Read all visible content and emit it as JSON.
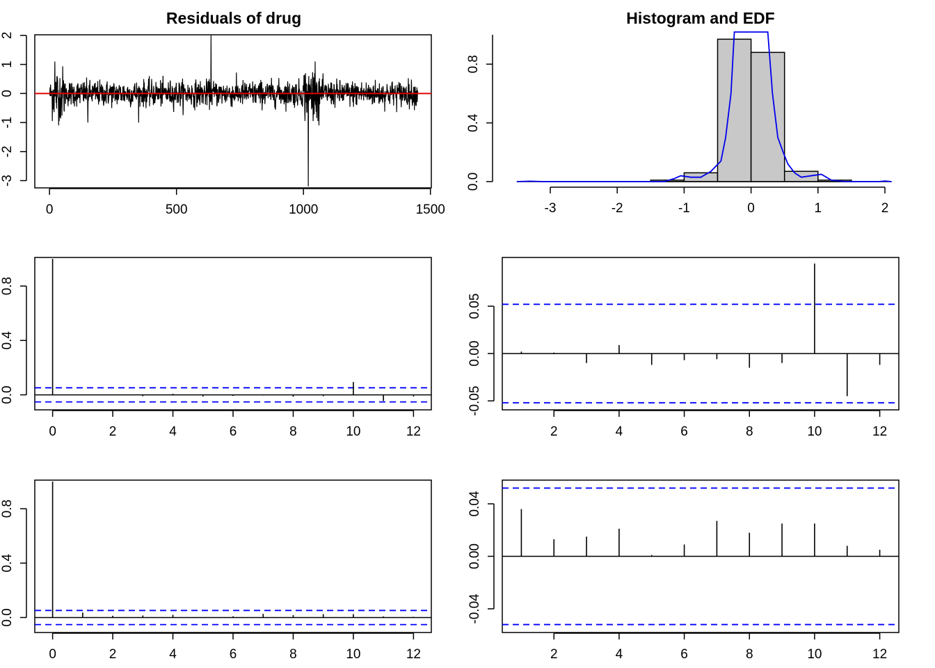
{
  "colors": {
    "axis": "#000000",
    "zero_line": "#e00000",
    "ci_line": "#0000ff",
    "density": "#0000ee",
    "hist_fill": "#c8c8c8"
  },
  "chart_data": [
    {
      "id": "residuals",
      "type": "line",
      "title": "Residuals of drug",
      "xlim": [
        0,
        1500
      ],
      "ylim": [
        -3.2,
        2
      ],
      "xticks": [
        0,
        500,
        1000,
        1500
      ],
      "yticks": [
        -3,
        -2,
        -1,
        0,
        1,
        2
      ],
      "n": 1450,
      "noise_sd": 0.22,
      "high_volatility_ranges": [
        [
          10,
          60
        ],
        [
          1000,
          1060
        ]
      ],
      "notable_points": [
        {
          "x": 635,
          "y": 2.0
        },
        {
          "x": 1018,
          "y": -3.2
        },
        {
          "x": 20,
          "y": 1.1
        },
        {
          "x": 1045,
          "y": 1.1
        },
        {
          "x": 35,
          "y": -1.1
        },
        {
          "x": 1060,
          "y": -1.1
        },
        {
          "x": 150,
          "y": -1.0
        },
        {
          "x": 350,
          "y": -1.0
        }
      ],
      "reference_line": 0
    },
    {
      "id": "histogram",
      "type": "bar",
      "title": "Histogram and EDF",
      "xlim": [
        -3.5,
        2.1
      ],
      "ylim": [
        0,
        1
      ],
      "xticks": [
        -3,
        -2,
        -1,
        0,
        1,
        2
      ],
      "yticks": [
        0.0,
        0.4,
        0.8
      ],
      "bins": [
        {
          "from": -1.5,
          "to": -1.0,
          "density": 0.01
        },
        {
          "from": -1.0,
          "to": -0.5,
          "density": 0.06
        },
        {
          "from": -0.5,
          "to": 0.0,
          "density": 0.97
        },
        {
          "from": 0.0,
          "to": 0.5,
          "density": 0.88
        },
        {
          "from": 0.5,
          "to": 1.0,
          "density": 0.07
        },
        {
          "from": 1.0,
          "to": 1.5,
          "density": 0.01
        }
      ],
      "density_curve": [
        [
          -3.5,
          0
        ],
        [
          -3.3,
          0.003
        ],
        [
          -3.1,
          0
        ],
        [
          -1.3,
          0
        ],
        [
          -1.15,
          0.02
        ],
        [
          -1.05,
          0.04
        ],
        [
          -0.9,
          0.03
        ],
        [
          -0.75,
          0.03
        ],
        [
          -0.6,
          0.07
        ],
        [
          -0.45,
          0.14
        ],
        [
          -0.38,
          0.3
        ],
        [
          -0.3,
          0.6
        ],
        [
          -0.25,
          1.05
        ],
        [
          -0.2,
          1.5
        ],
        [
          0.2,
          1.5
        ],
        [
          0.25,
          1.05
        ],
        [
          0.32,
          0.6
        ],
        [
          0.4,
          0.3
        ],
        [
          0.48,
          0.2
        ],
        [
          0.55,
          0.12
        ],
        [
          0.65,
          0.06
        ],
        [
          0.75,
          0.03
        ],
        [
          0.9,
          0.04
        ],
        [
          1.05,
          0.05
        ],
        [
          1.2,
          0.01
        ],
        [
          1.4,
          0
        ],
        [
          1.9,
          0
        ],
        [
          2.0,
          0.004
        ],
        [
          2.1,
          0
        ]
      ]
    },
    {
      "id": "acf_residuals",
      "type": "bar",
      "lags": [
        0,
        1,
        2,
        3,
        4,
        5,
        6,
        7,
        8,
        9,
        10,
        11,
        12
      ],
      "values": [
        1.0,
        0.002,
        0.001,
        -0.01,
        0.008,
        -0.012,
        -0.008,
        -0.004,
        -0.014,
        -0.01,
        0.095,
        -0.045,
        -0.012
      ],
      "ci": 0.052,
      "xlim": [
        -0.5,
        12.5
      ],
      "ylim": [
        -0.1,
        1.0
      ],
      "xticks": [
        0,
        2,
        4,
        6,
        8,
        10,
        12
      ],
      "yticks": [
        0.0,
        0.4,
        0.8
      ]
    },
    {
      "id": "pacf_residuals",
      "type": "bar",
      "lags": [
        1,
        2,
        3,
        4,
        5,
        6,
        7,
        8,
        9,
        10,
        11,
        12
      ],
      "values": [
        0.002,
        0.001,
        -0.01,
        0.009,
        -0.012,
        -0.007,
        -0.006,
        -0.015,
        -0.01,
        0.095,
        -0.045,
        -0.012
      ],
      "ci": 0.052,
      "xlim": [
        0.5,
        12.5
      ],
      "ylim": [
        -0.058,
        0.1
      ],
      "xticks": [
        2,
        4,
        6,
        8,
        10,
        12
      ],
      "yticks": [
        -0.05,
        0.0,
        0.05
      ],
      "ytick_labels": [
        "-0.05",
        "0.00",
        "0.05"
      ]
    },
    {
      "id": "acf_squared",
      "type": "bar",
      "lags": [
        0,
        1,
        2,
        3,
        4,
        5,
        6,
        7,
        8,
        9,
        10,
        11,
        12
      ],
      "values": [
        1.0,
        0.036,
        0.013,
        0.015,
        0.02,
        0.001,
        0.009,
        0.027,
        0.018,
        0.025,
        0.025,
        0.008,
        0.005
      ],
      "ci": 0.052,
      "xlim": [
        -0.5,
        12.5
      ],
      "ylim": [
        -0.1,
        1.0
      ],
      "xticks": [
        0,
        2,
        4,
        6,
        8,
        10,
        12
      ],
      "yticks": [
        0.0,
        0.4,
        0.8
      ]
    },
    {
      "id": "pacf_squared",
      "type": "bar",
      "lags": [
        1,
        2,
        3,
        4,
        5,
        6,
        7,
        8,
        9,
        10,
        11,
        12
      ],
      "values": [
        0.036,
        0.013,
        0.015,
        0.021,
        0.001,
        0.009,
        0.027,
        0.018,
        0.025,
        0.025,
        0.008,
        0.005
      ],
      "ci": 0.052,
      "xlim": [
        0.5,
        12.5
      ],
      "ylim": [
        -0.057,
        0.057
      ],
      "xticks": [
        2,
        4,
        6,
        8,
        10,
        12
      ],
      "yticks": [
        -0.04,
        0.0,
        0.04
      ],
      "ytick_labels": [
        "-0.04",
        "0.00",
        "0.04"
      ]
    }
  ]
}
